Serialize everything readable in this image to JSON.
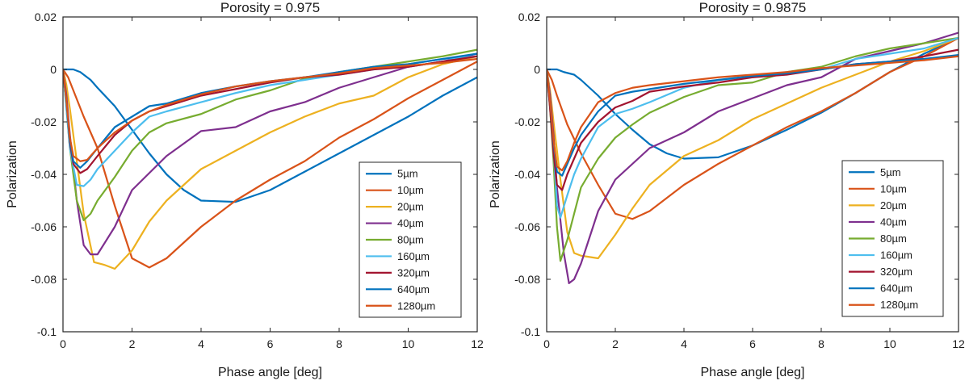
{
  "chart_data": [
    {
      "type": "line",
      "title": "Porosity = 0.975",
      "xlabel": "Phase angle [deg]",
      "ylabel": "Polarization",
      "xlim": [
        0,
        12
      ],
      "ylim": [
        -0.1,
        0.02
      ],
      "xticks": [
        0,
        2,
        4,
        6,
        8,
        10,
        12
      ],
      "xtick_labels": [
        "0",
        "2",
        "4",
        "6",
        "8",
        "10",
        "12"
      ],
      "yticks": [
        0.02,
        0,
        -0.02,
        -0.04,
        -0.06,
        -0.08,
        -0.1
      ],
      "ytick_labels": [
        "0.02",
        "0",
        "-0.02",
        "-0.04",
        "-0.06",
        "-0.08",
        "-0.1"
      ],
      "legend_position": "middle-right",
      "series": [
        {
          "name": "5µm",
          "color": "#0072BD",
          "x": [
            0,
            0.3,
            0.5,
            0.8,
            1.0,
            1.5,
            2.0,
            2.5,
            3.0,
            3.5,
            4.0,
            5.0,
            6.0,
            7.0,
            8.0,
            9.0,
            10.0,
            11.0,
            12.0
          ],
          "y": [
            0.0,
            0.0,
            -0.001,
            -0.004,
            -0.007,
            -0.014,
            -0.023,
            -0.032,
            -0.04,
            -0.046,
            -0.05,
            -0.0505,
            -0.046,
            -0.039,
            -0.032,
            -0.025,
            -0.018,
            -0.01,
            -0.003
          ]
        },
        {
          "name": "10µm",
          "color": "#D95319",
          "x": [
            0,
            0.15,
            0.3,
            0.6,
            1.0,
            1.5,
            2.0,
            2.5,
            3.0,
            4.0,
            5.0,
            6.0,
            7.0,
            8.0,
            9.0,
            10.0,
            11.0,
            12.0
          ],
          "y": [
            0.0,
            -0.003,
            -0.008,
            -0.018,
            -0.03,
            -0.052,
            -0.072,
            -0.0755,
            -0.072,
            -0.06,
            -0.05,
            -0.042,
            -0.035,
            -0.026,
            -0.019,
            -0.011,
            -0.004,
            0.003
          ]
        },
        {
          "name": "20µm",
          "color": "#EDB120",
          "x": [
            0,
            0.1,
            0.2,
            0.4,
            0.6,
            0.9,
            1.2,
            1.5,
            2.0,
            2.5,
            3.0,
            4.0,
            5.0,
            6.0,
            7.0,
            8.0,
            9.0,
            10.0,
            11.0,
            12.0
          ],
          "y": [
            0.0,
            -0.006,
            -0.015,
            -0.035,
            -0.055,
            -0.0735,
            -0.0745,
            -0.076,
            -0.069,
            -0.058,
            -0.05,
            -0.038,
            -0.031,
            -0.024,
            -0.018,
            -0.013,
            -0.01,
            -0.003,
            0.002,
            0.005
          ]
        },
        {
          "name": "40µm",
          "color": "#7E2F8E",
          "x": [
            0,
            0.1,
            0.2,
            0.4,
            0.6,
            0.8,
            1.0,
            1.5,
            2.0,
            3.0,
            4.0,
            5.0,
            6.0,
            7.0,
            8.0,
            9.0,
            10.0,
            11.0,
            12.0
          ],
          "y": [
            0.0,
            -0.01,
            -0.025,
            -0.05,
            -0.067,
            -0.0705,
            -0.0705,
            -0.06,
            -0.046,
            -0.033,
            -0.0235,
            -0.022,
            -0.016,
            -0.0125,
            -0.007,
            -0.003,
            0.001,
            0.003,
            0.006
          ]
        },
        {
          "name": "80µm",
          "color": "#77AC30",
          "x": [
            0,
            0.1,
            0.2,
            0.4,
            0.6,
            0.8,
            1.0,
            1.5,
            2.0,
            2.5,
            3.0,
            4.0,
            5.0,
            6.0,
            7.0,
            8.0,
            9.0,
            10.0,
            11.0,
            12.0
          ],
          "y": [
            0.0,
            -0.015,
            -0.03,
            -0.05,
            -0.0575,
            -0.055,
            -0.05,
            -0.041,
            -0.031,
            -0.024,
            -0.0205,
            -0.017,
            -0.0115,
            -0.008,
            -0.0035,
            -0.001,
            0.001,
            0.003,
            0.005,
            0.0075
          ]
        },
        {
          "name": "160µm",
          "color": "#4DBEEE",
          "x": [
            0,
            0.1,
            0.2,
            0.4,
            0.6,
            0.8,
            1.0,
            1.5,
            2.0,
            2.5,
            3.0,
            4.0,
            5.0,
            6.0,
            7.0,
            8.0,
            9.0,
            10.0,
            11.0,
            12.0
          ],
          "y": [
            0.0,
            -0.015,
            -0.03,
            -0.044,
            -0.0445,
            -0.042,
            -0.038,
            -0.031,
            -0.024,
            -0.018,
            -0.016,
            -0.0125,
            -0.009,
            -0.006,
            -0.004,
            -0.002,
            0.0,
            0.002,
            0.004,
            0.005
          ]
        },
        {
          "name": "320µm",
          "color": "#A2142F",
          "x": [
            0,
            0.1,
            0.2,
            0.3,
            0.5,
            0.7,
            1.0,
            1.5,
            2.0,
            2.5,
            3.0,
            4.0,
            5.0,
            6.0,
            7.0,
            8.0,
            9.0,
            10.0,
            11.0,
            12.0
          ],
          "y": [
            0.0,
            -0.012,
            -0.028,
            -0.036,
            -0.0395,
            -0.038,
            -0.033,
            -0.025,
            -0.0195,
            -0.016,
            -0.014,
            -0.01,
            -0.0075,
            -0.005,
            -0.003,
            -0.002,
            0.0,
            0.001,
            0.003,
            0.005
          ]
        },
        {
          "name": "640µm",
          "color": "#0072BD",
          "x": [
            0,
            0.1,
            0.2,
            0.3,
            0.5,
            0.7,
            1.0,
            1.5,
            2.0,
            2.5,
            3.0,
            4.0,
            5.0,
            6.0,
            7.0,
            8.0,
            9.0,
            10.0,
            11.0,
            12.0
          ],
          "y": [
            0.0,
            -0.012,
            -0.027,
            -0.035,
            -0.0375,
            -0.035,
            -0.03,
            -0.022,
            -0.018,
            -0.014,
            -0.013,
            -0.009,
            -0.0065,
            -0.0045,
            -0.003,
            -0.001,
            0.001,
            0.002,
            0.004,
            0.006
          ]
        },
        {
          "name": "1280µm",
          "color": "#D95319",
          "x": [
            0,
            0.1,
            0.2,
            0.3,
            0.5,
            0.7,
            1.0,
            1.5,
            2.0,
            2.5,
            3.0,
            4.0,
            5.0,
            6.0,
            7.0,
            8.0,
            9.0,
            10.0,
            11.0,
            12.0
          ],
          "y": [
            0.0,
            -0.012,
            -0.026,
            -0.033,
            -0.035,
            -0.0345,
            -0.03,
            -0.024,
            -0.0195,
            -0.016,
            -0.0135,
            -0.0095,
            -0.0065,
            -0.0045,
            -0.003,
            -0.0015,
            0.0005,
            0.0015,
            0.0025,
            0.004
          ]
        }
      ]
    },
    {
      "type": "line",
      "title": "Porosity = 0.9875",
      "xlabel": "Phase angle [deg]",
      "ylabel": "Polarization",
      "xlim": [
        0,
        12
      ],
      "ylim": [
        -0.1,
        0.02
      ],
      "xticks": [
        0,
        2,
        4,
        6,
        8,
        10,
        12
      ],
      "xtick_labels": [
        "0",
        "2",
        "4",
        "6",
        "8",
        "10",
        "12"
      ],
      "yticks": [
        0.02,
        0,
        -0.02,
        -0.04,
        -0.06,
        -0.08,
        -0.1
      ],
      "ytick_labels": [
        "0.02",
        "0",
        "-0.02",
        "-0.04",
        "-0.06",
        "-0.08",
        "-0.1"
      ],
      "legend_position": "middle-right",
      "series": [
        {
          "name": "5µm",
          "color": "#0072BD",
          "x": [
            0,
            0.3,
            0.5,
            0.8,
            1.0,
            1.5,
            2.0,
            2.5,
            3.0,
            3.5,
            4.0,
            5.0,
            6.0,
            7.0,
            8.0,
            9.0,
            10.0,
            11.0,
            12.0
          ],
          "y": [
            0.0,
            0.0,
            -0.001,
            -0.002,
            -0.004,
            -0.01,
            -0.017,
            -0.023,
            -0.0285,
            -0.032,
            -0.034,
            -0.0335,
            -0.029,
            -0.023,
            -0.0165,
            -0.009,
            -0.001,
            0.006,
            0.012
          ]
        },
        {
          "name": "10µm",
          "color": "#D95319",
          "x": [
            0,
            0.15,
            0.3,
            0.6,
            1.0,
            1.5,
            2.0,
            2.5,
            3.0,
            4.0,
            5.0,
            6.0,
            7.0,
            8.0,
            9.0,
            10.0,
            11.0,
            12.0
          ],
          "y": [
            0.0,
            -0.004,
            -0.01,
            -0.021,
            -0.032,
            -0.044,
            -0.055,
            -0.057,
            -0.054,
            -0.044,
            -0.036,
            -0.029,
            -0.022,
            -0.016,
            -0.009,
            -0.001,
            0.005,
            0.012
          ]
        },
        {
          "name": "20µm",
          "color": "#EDB120",
          "x": [
            0,
            0.1,
            0.2,
            0.4,
            0.6,
            0.8,
            1.0,
            1.5,
            2.0,
            2.5,
            3.0,
            4.0,
            5.0,
            6.0,
            7.0,
            8.0,
            9.0,
            10.0,
            11.0,
            12.0
          ],
          "y": [
            0.0,
            -0.008,
            -0.02,
            -0.042,
            -0.062,
            -0.07,
            -0.071,
            -0.072,
            -0.063,
            -0.053,
            -0.044,
            -0.033,
            -0.027,
            -0.019,
            -0.013,
            -0.007,
            -0.002,
            0.003,
            0.007,
            0.012
          ]
        },
        {
          "name": "40µm",
          "color": "#7E2F8E",
          "x": [
            0,
            0.1,
            0.2,
            0.3,
            0.5,
            0.65,
            0.8,
            1.0,
            1.5,
            2.0,
            3.0,
            4.0,
            5.0,
            6.0,
            7.0,
            8.0,
            9.0,
            10.0,
            11.0,
            12.0
          ],
          "y": [
            0.0,
            -0.01,
            -0.025,
            -0.045,
            -0.07,
            -0.0815,
            -0.08,
            -0.074,
            -0.054,
            -0.042,
            -0.03,
            -0.024,
            -0.016,
            -0.011,
            -0.006,
            -0.003,
            0.004,
            0.007,
            0.01,
            0.014
          ]
        },
        {
          "name": "80µm",
          "color": "#77AC30",
          "x": [
            0,
            0.1,
            0.2,
            0.3,
            0.4,
            0.6,
            0.8,
            1.0,
            1.5,
            2.0,
            2.5,
            3.0,
            4.0,
            5.0,
            6.0,
            7.0,
            8.0,
            9.0,
            10.0,
            11.0,
            12.0
          ],
          "y": [
            0.0,
            -0.015,
            -0.035,
            -0.06,
            -0.073,
            -0.065,
            -0.055,
            -0.045,
            -0.034,
            -0.026,
            -0.021,
            -0.0165,
            -0.0105,
            -0.006,
            -0.005,
            -0.001,
            0.001,
            0.005,
            0.008,
            0.01,
            0.012
          ]
        },
        {
          "name": "160µm",
          "color": "#4DBEEE",
          "x": [
            0,
            0.1,
            0.2,
            0.3,
            0.4,
            0.6,
            0.8,
            1.0,
            1.5,
            2.0,
            2.5,
            3.0,
            4.0,
            5.0,
            6.0,
            7.0,
            8.0,
            9.0,
            10.0,
            11.0,
            12.0
          ],
          "y": [
            0.0,
            -0.012,
            -0.03,
            -0.052,
            -0.0565,
            -0.048,
            -0.04,
            -0.034,
            -0.022,
            -0.017,
            -0.015,
            -0.0125,
            -0.007,
            -0.004,
            -0.003,
            -0.001,
            0.0,
            0.004,
            0.006,
            0.008,
            0.012
          ]
        },
        {
          "name": "320µm",
          "color": "#A2142F",
          "x": [
            0,
            0.1,
            0.2,
            0.3,
            0.45,
            0.6,
            0.8,
            1.0,
            1.5,
            2.0,
            2.5,
            3.0,
            4.0,
            5.0,
            6.0,
            7.0,
            8.0,
            9.0,
            10.0,
            11.0,
            12.0
          ],
          "y": [
            0.0,
            -0.015,
            -0.032,
            -0.044,
            -0.046,
            -0.04,
            -0.034,
            -0.028,
            -0.02,
            -0.0145,
            -0.012,
            -0.0085,
            -0.0065,
            -0.005,
            -0.003,
            -0.002,
            0.0,
            0.002,
            0.003,
            0.005,
            0.0075
          ]
        },
        {
          "name": "640µm",
          "color": "#0072BD",
          "x": [
            0,
            0.1,
            0.2,
            0.3,
            0.45,
            0.6,
            0.8,
            1.0,
            1.5,
            2.0,
            2.5,
            3.0,
            4.0,
            5.0,
            6.0,
            7.0,
            8.0,
            9.0,
            10.0,
            11.0,
            12.0
          ],
          "y": [
            0.0,
            -0.012,
            -0.028,
            -0.039,
            -0.0405,
            -0.036,
            -0.03,
            -0.025,
            -0.016,
            -0.01,
            -0.0085,
            -0.0075,
            -0.0055,
            -0.004,
            -0.0025,
            -0.0015,
            0.0,
            0.002,
            0.003,
            0.004,
            0.0055
          ]
        },
        {
          "name": "1280µm",
          "color": "#D95319",
          "x": [
            0,
            0.1,
            0.2,
            0.3,
            0.45,
            0.6,
            0.8,
            1.0,
            1.5,
            2.0,
            2.5,
            3.0,
            4.0,
            5.0,
            6.0,
            7.0,
            8.0,
            9.0,
            10.0,
            11.0,
            12.0
          ],
          "y": [
            0.0,
            -0.012,
            -0.027,
            -0.037,
            -0.0385,
            -0.035,
            -0.028,
            -0.022,
            -0.0125,
            -0.009,
            -0.007,
            -0.006,
            -0.0045,
            -0.003,
            -0.002,
            -0.001,
            0.0005,
            0.0015,
            0.0025,
            0.0035,
            0.005
          ]
        }
      ]
    }
  ]
}
